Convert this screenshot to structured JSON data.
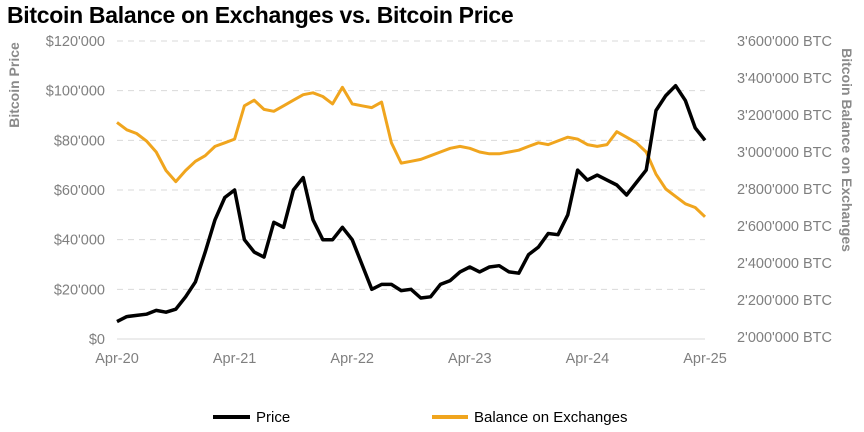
{
  "chart_data": {
    "type": "line",
    "title": "Bitcoin Balance on Exchanges vs. Bitcoin Price",
    "ylabel": "Bitcoin Price",
    "y2label": "Bitcoin Balance on Exchanges",
    "ylim": [
      0,
      120000
    ],
    "y2lim": [
      2000000,
      3600000
    ],
    "yticks": [
      "$0",
      "$20'000",
      "$40'000",
      "$60'000",
      "$80'000",
      "$100'000",
      "$120'000"
    ],
    "y2ticks": [
      "2'000'000 BTC",
      "2'200'000 BTC",
      "2'400'000 BTC",
      "2'600'000 BTC",
      "2'800'000 BTC",
      "3'000'000 BTC",
      "3'200'000 BTC",
      "3'400'000 BTC",
      "3'600'000 BTC"
    ],
    "xticks": [
      "Apr-20",
      "Apr-21",
      "Apr-22",
      "Apr-23",
      "Apr-24",
      "Apr-25"
    ],
    "x_unit": "months since Apr-20",
    "grid": true,
    "legend_position": "bottom",
    "series": [
      {
        "name": "Price",
        "color": "#000000",
        "axis": "left",
        "values": [
          7000,
          9000,
          9500,
          10000,
          11500,
          10800,
          12000,
          17000,
          23000,
          35000,
          48000,
          57000,
          60000,
          40000,
          35000,
          33000,
          47000,
          45000,
          60000,
          65000,
          48000,
          40000,
          40000,
          45000,
          40000,
          30000,
          20000,
          22000,
          22000,
          19500,
          20000,
          16500,
          17000,
          22000,
          23500,
          27000,
          29000,
          27000,
          29000,
          29500,
          27000,
          26500,
          34000,
          37000,
          42500,
          42000,
          50000,
          68000,
          64000,
          66000,
          64000,
          62000,
          58000,
          63000,
          68000,
          92000,
          98000,
          102000,
          96000,
          85000,
          80000
        ]
      },
      {
        "name": "Balance on Exchanges",
        "color": "#f0a51e",
        "axis": "right",
        "values": [
          3160000,
          3120000,
          3100000,
          3060000,
          3000000,
          2900000,
          2840000,
          2900000,
          2950000,
          2980000,
          3030000,
          3050000,
          3070000,
          3250000,
          3280000,
          3230000,
          3220000,
          3250000,
          3280000,
          3310000,
          3320000,
          3300000,
          3260000,
          3350000,
          3260000,
          3250000,
          3240000,
          3270000,
          3050000,
          2940000,
          2950000,
          2960000,
          2980000,
          3000000,
          3020000,
          3030000,
          3020000,
          3000000,
          2990000,
          2990000,
          3000000,
          3010000,
          3030000,
          3050000,
          3040000,
          3060000,
          3080000,
          3070000,
          3040000,
          3030000,
          3040000,
          3110000,
          3080000,
          3050000,
          3000000,
          2880000,
          2800000,
          2760000,
          2720000,
          2700000,
          2650000
        ]
      }
    ]
  }
}
